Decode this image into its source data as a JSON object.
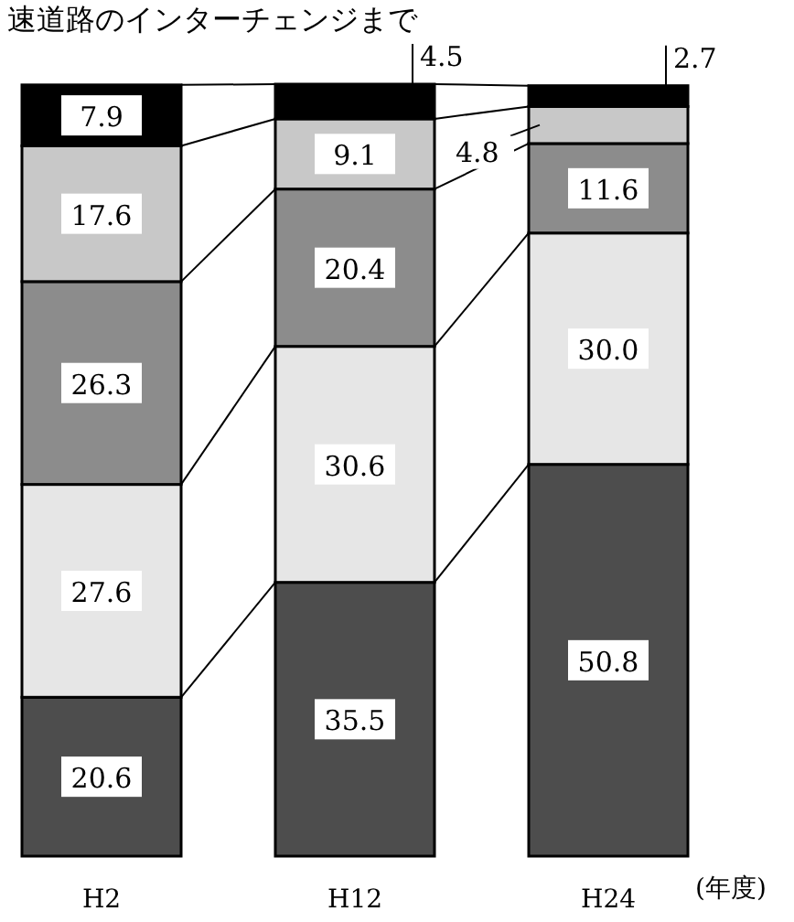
{
  "chart_data": {
    "type": "bar",
    "stacked": true,
    "title": "速道路のインターチェンジまで",
    "xlabel": "(年度)",
    "categories": [
      "H2",
      "H12",
      "H24"
    ],
    "series": [
      {
        "color": "#4d4d4d",
        "values": [
          20.6,
          35.5,
          50.8
        ],
        "value_labels": [
          "20.6",
          "35.5",
          "50.8"
        ]
      },
      {
        "color": "#e6e6e6",
        "values": [
          27.6,
          30.6,
          30.0
        ],
        "value_labels": [
          "27.6",
          "30.6",
          "30.0"
        ]
      },
      {
        "color": "#8c8c8c",
        "values": [
          26.3,
          20.4,
          11.6
        ],
        "value_labels": [
          "26.3",
          "20.4",
          "11.6"
        ]
      },
      {
        "color": "#c8c8c8",
        "values": [
          17.6,
          9.1,
          4.8
        ],
        "value_labels": [
          "17.6",
          "9.1",
          "4.8"
        ]
      },
      {
        "color": "#000000",
        "values": [
          7.9,
          4.5,
          2.7
        ],
        "value_labels": [
          "7.9",
          "4.5",
          "2.7"
        ]
      }
    ]
  }
}
